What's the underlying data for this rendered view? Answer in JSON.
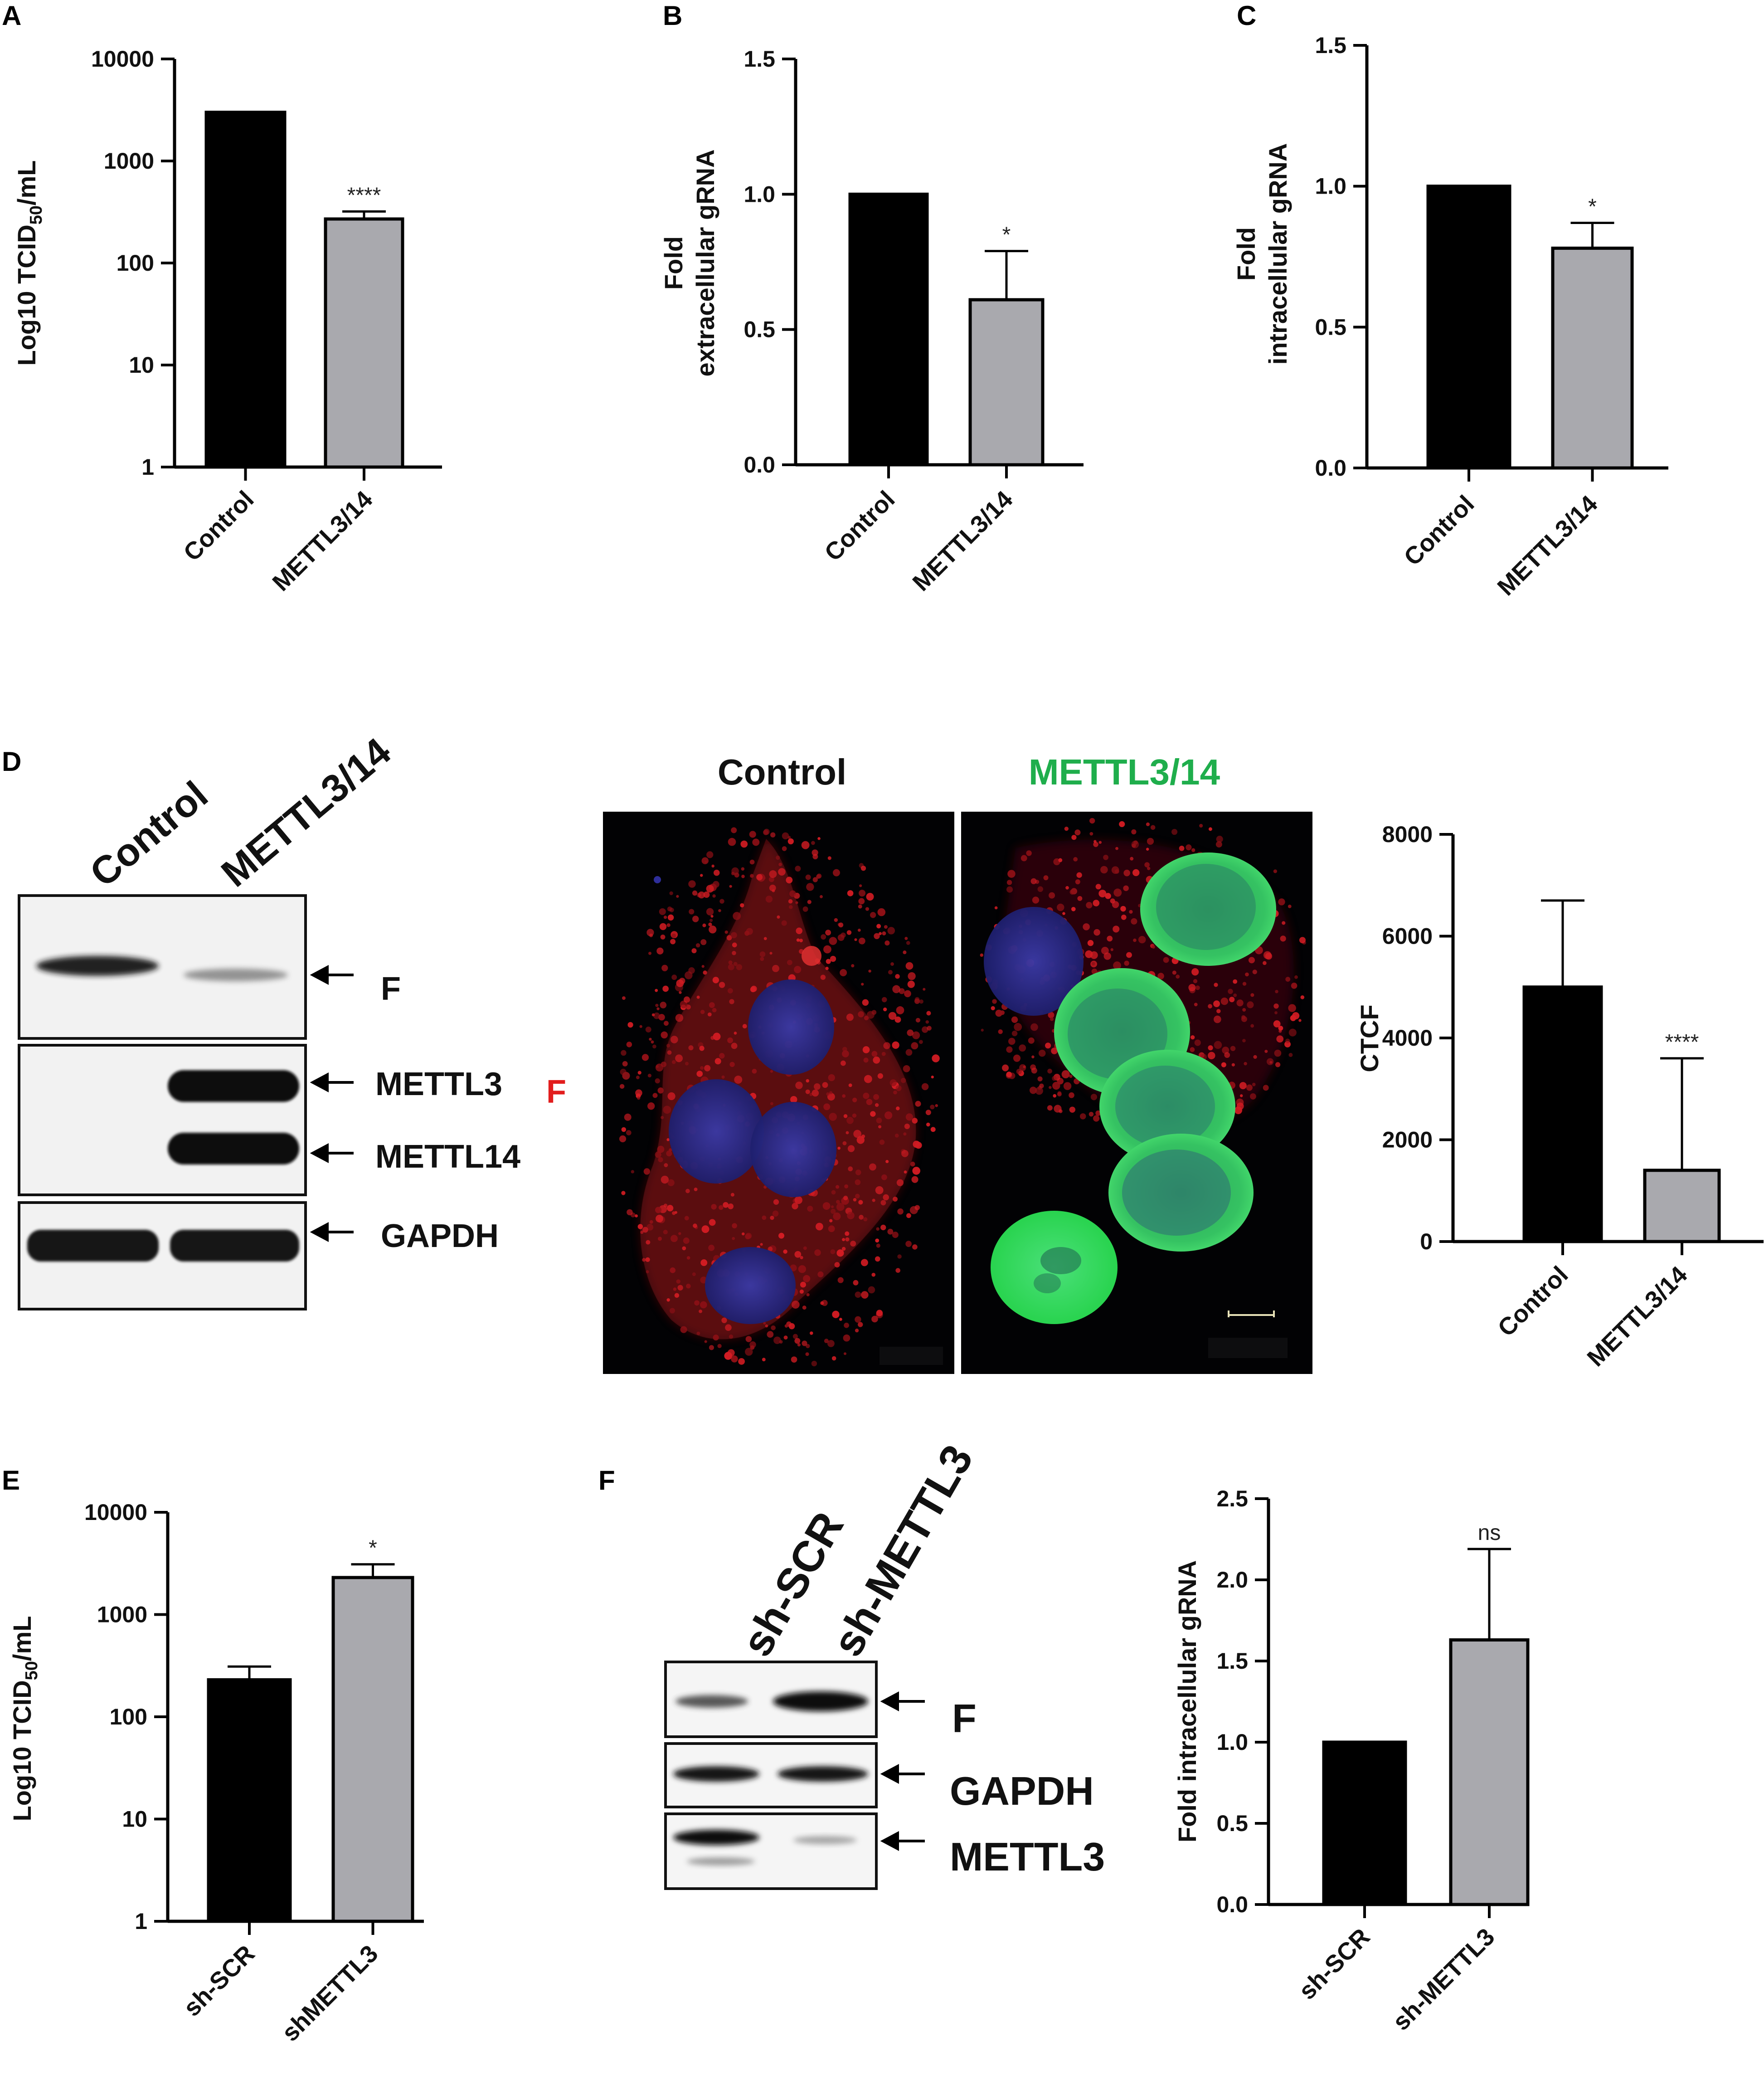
{
  "panels": {
    "a": "A",
    "b": "B",
    "c": "C",
    "d": "D",
    "e": "E",
    "f": "F"
  },
  "chart_data": [
    {
      "id": "A",
      "type": "bar",
      "yscale": "log",
      "ylabel": "Log10 TCID",
      "ylabel_sub": "50",
      "ylabel_suffix": "/mL",
      "ylim": [
        1,
        10000
      ],
      "yticks": [
        1,
        10,
        100,
        1000,
        10000
      ],
      "ytick_labels": [
        "1",
        "10",
        "100",
        "1000",
        "10000"
      ],
      "categories": [
        "Control",
        "METTL3/14"
      ],
      "values": [
        3000,
        270
      ],
      "errors": [
        null,
        320
      ],
      "colors": [
        "#000000",
        "#a9a9ae"
      ],
      "significance": [
        null,
        "****"
      ]
    },
    {
      "id": "B",
      "type": "bar",
      "yscale": "linear",
      "ylabel": "Fold",
      "ylabel2": "extracellular gRNA",
      "ylim": [
        0,
        1.5
      ],
      "yticks": [
        0,
        0.5,
        1.0,
        1.5
      ],
      "ytick_labels": [
        "0.0",
        "0.5",
        "1.0",
        "1.5"
      ],
      "categories": [
        "Control",
        "METTL3/14"
      ],
      "values": [
        1.0,
        0.61
      ],
      "errors": [
        null,
        0.79
      ],
      "colors": [
        "#000000",
        "#a9a9ae"
      ],
      "significance": [
        null,
        "*"
      ]
    },
    {
      "id": "C",
      "type": "bar",
      "yscale": "linear",
      "ylabel": "Fold",
      "ylabel2": "intracellular gRNA",
      "ylim": [
        0,
        1.5
      ],
      "yticks": [
        0,
        0.5,
        1.0,
        1.5
      ],
      "ytick_labels": [
        "0.0",
        "0.5",
        "1.0",
        "1.5"
      ],
      "categories": [
        "Control",
        "METTL3/14"
      ],
      "values": [
        1.0,
        0.78
      ],
      "errors": [
        null,
        0.87
      ],
      "colors": [
        "#000000",
        "#a9a9ae"
      ],
      "significance": [
        null,
        "*"
      ]
    },
    {
      "id": "D-CTCF",
      "type": "bar",
      "yscale": "linear",
      "ylabel": "CTCF",
      "ylim": [
        0,
        8000
      ],
      "yticks": [
        0,
        2000,
        4000,
        6000,
        8000
      ],
      "ytick_labels": [
        "0",
        "2000",
        "4000",
        "6000",
        "8000"
      ],
      "categories": [
        "Control",
        "METTL3/14"
      ],
      "values": [
        5000,
        1400
      ],
      "errors": [
        6700,
        3600
      ],
      "colors": [
        "#000000",
        "#a9a9ae"
      ],
      "significance": [
        null,
        "****"
      ]
    },
    {
      "id": "E",
      "type": "bar",
      "yscale": "log",
      "ylabel": "Log10 TCID",
      "ylabel_sub": "50",
      "ylabel_suffix": "/mL",
      "ylim": [
        1,
        10000
      ],
      "yticks": [
        1,
        10,
        100,
        1000,
        10000
      ],
      "ytick_labels": [
        "1",
        "10",
        "100",
        "1000",
        "10000"
      ],
      "categories": [
        "sh-SCR",
        "shMETTL3"
      ],
      "values": [
        230,
        2300
      ],
      "errors": [
        310,
        3100
      ],
      "colors": [
        "#000000",
        "#a9a9ae"
      ],
      "significance": [
        null,
        "*"
      ]
    },
    {
      "id": "F-gRNA",
      "type": "bar",
      "yscale": "linear",
      "ylabel": "Fold intracellular gRNA",
      "ylim": [
        0,
        2.5
      ],
      "yticks": [
        0,
        0.5,
        1.0,
        1.5,
        2.0,
        2.5
      ],
      "ytick_labels": [
        "0.0",
        "0.5",
        "1.0",
        "1.5",
        "2.0",
        "2.5"
      ],
      "categories": [
        "sh-SCR",
        "sh-METTL3"
      ],
      "values": [
        1.0,
        1.63
      ],
      "errors": [
        null,
        2.19
      ],
      "colors": [
        "#000000",
        "#a9a9ae"
      ],
      "significance": [
        null,
        "ns"
      ]
    }
  ],
  "blot_d": {
    "lanes": [
      "Control",
      "METTL3/14"
    ],
    "bands": [
      "F",
      "METTL3",
      "METTL14",
      "GAPDH"
    ],
    "band_levels": {
      "F": [
        1.0,
        0.35
      ],
      "METTL3": [
        0,
        1.0
      ],
      "METTL14": [
        0,
        1.0
      ],
      "GAPDH": [
        1.0,
        1.0
      ]
    },
    "red_marker": "F"
  },
  "microscopy_d": {
    "titles": [
      "Control",
      "METTL3/14"
    ],
    "title_colors": [
      "#111111",
      "#1fae4c"
    ]
  },
  "blot_f": {
    "lanes": [
      "sh-SCR",
      "sh-METTL3"
    ],
    "bands": [
      "F",
      "GAPDH",
      "METTL3"
    ],
    "band_levels": {
      "F": [
        0.6,
        1.0
      ],
      "GAPDH": [
        1.0,
        1.0
      ],
      "METTL3": [
        1.0,
        0.2
      ]
    }
  }
}
